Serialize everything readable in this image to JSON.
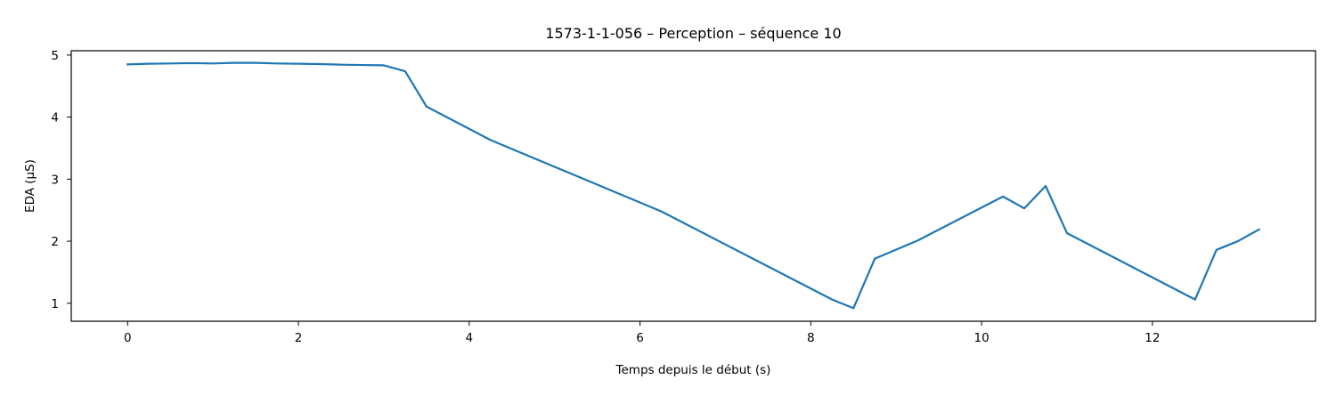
{
  "chart_data": {
    "type": "line",
    "title": "1573-1-1-056 – Perception – séquence 10",
    "xlabel": "Temps depuis le début (s)",
    "ylabel": "EDA (µS)",
    "xlim": [
      -0.66,
      13.91
    ],
    "ylim": [
      0.71,
      5.07
    ],
    "xticks": [
      0,
      2,
      4,
      6,
      8,
      10,
      12
    ],
    "yticks": [
      1,
      2,
      3,
      4,
      5
    ],
    "grid": false,
    "series_color": "#1f77b4",
    "series": [
      {
        "x": [
          0,
          0.25,
          0.5,
          0.75,
          1.0,
          1.25,
          1.5,
          1.75,
          2.0,
          2.25,
          2.5,
          2.75,
          3.0,
          3.25,
          3.5,
          4.25,
          6.25,
          8.25,
          8.5,
          8.75,
          9.25,
          10.25,
          10.5,
          10.75,
          11.0,
          12.5,
          12.75,
          13.0,
          13.25
        ],
        "y": [
          4.85,
          4.86,
          4.865,
          4.87,
          4.865,
          4.875,
          4.875,
          4.865,
          4.86,
          4.855,
          4.845,
          4.84,
          4.835,
          4.74,
          4.17,
          3.63,
          2.48,
          1.06,
          0.92,
          1.72,
          2.01,
          2.72,
          2.53,
          2.89,
          2.13,
          1.06,
          1.86,
          2.0,
          2.19
        ]
      }
    ]
  }
}
